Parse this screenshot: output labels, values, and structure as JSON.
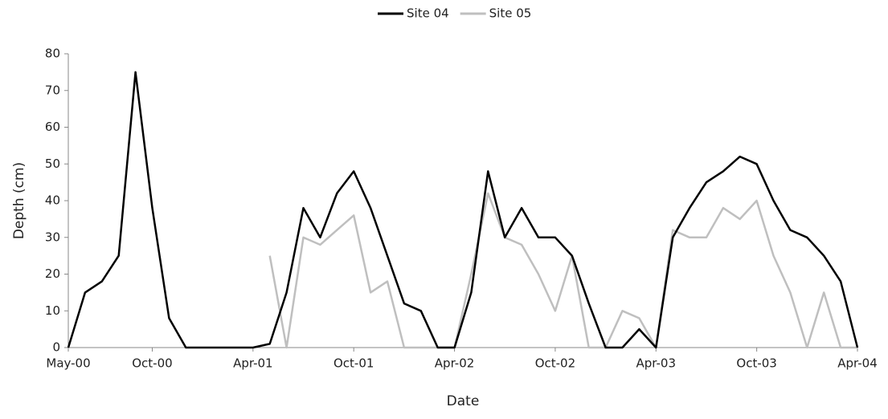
{
  "chart_data": {
    "type": "line",
    "x_label": "Date",
    "y_label": "Depth (cm)",
    "x": [
      "2000-05",
      "2000-06",
      "2000-07",
      "2000-08",
      "2000-09",
      "2000-10",
      "2000-11",
      "2000-12",
      "2001-01",
      "2001-02",
      "2001-03",
      "2001-04",
      "2001-05",
      "2001-06",
      "2001-07",
      "2001-08",
      "2001-09",
      "2001-10",
      "2001-11",
      "2001-12",
      "2002-01",
      "2002-02",
      "2002-03",
      "2002-04",
      "2002-05",
      "2002-06",
      "2002-07",
      "2002-08",
      "2002-09",
      "2002-10",
      "2002-11",
      "2002-12",
      "2003-01",
      "2003-02",
      "2003-03",
      "2003-04",
      "2003-05",
      "2003-06",
      "2003-07",
      "2003-08",
      "2003-09",
      "2003-10",
      "2003-11",
      "2003-12",
      "2004-01",
      "2004-02",
      "2004-03",
      "2004-04"
    ],
    "series": [
      {
        "name": "Site 04",
        "color": "#000000",
        "values": [
          0,
          15,
          18,
          25,
          75,
          38,
          8,
          0,
          0,
          0,
          0,
          0,
          1,
          15,
          38,
          30,
          42,
          48,
          38,
          25,
          12,
          10,
          0,
          0,
          15,
          48,
          30,
          38,
          30,
          30,
          25,
          12,
          0,
          0,
          5,
          0,
          30,
          38,
          45,
          48,
          52,
          50,
          40,
          32,
          30,
          25,
          18,
          0
        ]
      },
      {
        "name": "Site 05",
        "color": "#bfbfbf",
        "values": [
          null,
          null,
          null,
          null,
          null,
          null,
          null,
          null,
          null,
          null,
          null,
          null,
          25,
          0,
          30,
          28,
          32,
          36,
          15,
          18,
          0,
          0,
          0,
          0,
          20,
          42,
          30,
          28,
          20,
          10,
          25,
          0,
          0,
          10,
          8,
          0,
          32,
          30,
          30,
          38,
          35,
          40,
          25,
          15,
          0,
          15,
          0,
          0
        ]
      }
    ],
    "xlim": [
      "2000-05",
      "2004-04"
    ],
    "xticks": [
      {
        "value": "2000-05",
        "label": "May-00"
      },
      {
        "value": "2000-10",
        "label": "Oct-00"
      },
      {
        "value": "2001-04",
        "label": "Apr-01"
      },
      {
        "value": "2001-10",
        "label": "Oct-01"
      },
      {
        "value": "2002-04",
        "label": "Apr-02"
      },
      {
        "value": "2002-10",
        "label": "Oct-02"
      },
      {
        "value": "2003-04",
        "label": "Apr-03"
      },
      {
        "value": "2003-10",
        "label": "Oct-03"
      },
      {
        "value": "2004-04",
        "label": "Apr-04"
      }
    ],
    "ylim": [
      0,
      80
    ],
    "yticks": [
      0,
      10,
      20,
      30,
      40,
      50,
      60,
      70,
      80
    ],
    "grid": false,
    "legend": "top"
  }
}
